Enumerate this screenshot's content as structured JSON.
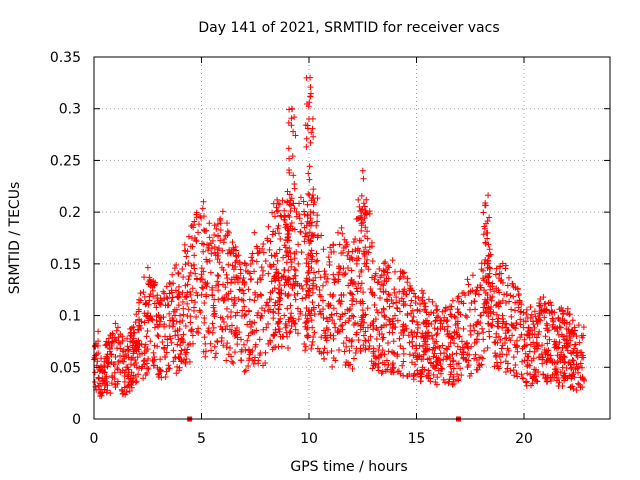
{
  "chart_data": {
    "type": "scatter",
    "title": "Day 141 of 2021, SRMTID for receiver vacs",
    "xlabel": "GPS time / hours",
    "ylabel": "SRMTID / TECUs",
    "xlim": [
      0,
      24
    ],
    "ylim": [
      0,
      0.35
    ],
    "xticks": [
      0,
      5,
      10,
      15,
      20
    ],
    "xtick_labels": [
      "0",
      "5",
      "10",
      "15",
      "20"
    ],
    "yticks": [
      0,
      0.05,
      0.1,
      0.15,
      0.2,
      0.25,
      0.3,
      0.35
    ],
    "ytick_labels": [
      "0",
      "0.05",
      "0.1",
      "0.15",
      "0.2",
      "0.25",
      "0.3",
      "0.35"
    ],
    "grid": true,
    "marker": "+",
    "color": "#ff0000",
    "x_range_hours": [
      0,
      22.8
    ],
    "series": [
      {
        "name": "SRMTID",
        "description_points": [
          {
            "x": 0.2,
            "y": 0.04
          },
          {
            "x": 0.5,
            "y": 0.05
          },
          {
            "x": 1.0,
            "y": 0.06
          },
          {
            "x": 1.5,
            "y": 0.05
          },
          {
            "x": 2.0,
            "y": 0.07
          },
          {
            "x": 2.5,
            "y": 0.1
          },
          {
            "x": 3.0,
            "y": 0.08
          },
          {
            "x": 3.5,
            "y": 0.09
          },
          {
            "x": 4.0,
            "y": 0.1
          },
          {
            "x": 4.5,
            "y": 0.12
          },
          {
            "x": 5.0,
            "y": 0.14
          },
          {
            "x": 5.5,
            "y": 0.12
          },
          {
            "x": 6.0,
            "y": 0.13
          },
          {
            "x": 6.5,
            "y": 0.11
          },
          {
            "x": 7.0,
            "y": 0.1
          },
          {
            "x": 7.5,
            "y": 0.12
          },
          {
            "x": 8.0,
            "y": 0.11
          },
          {
            "x": 8.5,
            "y": 0.16
          },
          {
            "x": 9.0,
            "y": 0.22
          },
          {
            "x": 9.2,
            "y": 0.3
          },
          {
            "x": 9.5,
            "y": 0.15
          },
          {
            "x": 10.0,
            "y": 0.29
          },
          {
            "x": 10.05,
            "y": 0.33
          },
          {
            "x": 10.5,
            "y": 0.12
          },
          {
            "x": 11.0,
            "y": 0.11
          },
          {
            "x": 11.5,
            "y": 0.12
          },
          {
            "x": 12.0,
            "y": 0.1
          },
          {
            "x": 12.5,
            "y": 0.24
          },
          {
            "x": 13.0,
            "y": 0.09
          },
          {
            "x": 13.5,
            "y": 0.1
          },
          {
            "x": 14.0,
            "y": 0.1
          },
          {
            "x": 14.5,
            "y": 0.09
          },
          {
            "x": 15.0,
            "y": 0.08
          },
          {
            "x": 15.5,
            "y": 0.08
          },
          {
            "x": 16.0,
            "y": 0.07
          },
          {
            "x": 16.5,
            "y": 0.07
          },
          {
            "x": 17.0,
            "y": 0.08
          },
          {
            "x": 17.5,
            "y": 0.09
          },
          {
            "x": 18.0,
            "y": 0.1
          },
          {
            "x": 18.3,
            "y": 0.18
          },
          {
            "x": 18.5,
            "y": 0.09
          },
          {
            "x": 19.0,
            "y": 0.1
          },
          {
            "x": 19.5,
            "y": 0.09
          },
          {
            "x": 20.0,
            "y": 0.07
          },
          {
            "x": 20.5,
            "y": 0.07
          },
          {
            "x": 21.0,
            "y": 0.08
          },
          {
            "x": 21.5,
            "y": 0.07
          },
          {
            "x": 22.0,
            "y": 0.07
          },
          {
            "x": 22.5,
            "y": 0.06
          }
        ]
      }
    ],
    "zero_markers_x": [
      4.45,
      16.95
    ]
  }
}
